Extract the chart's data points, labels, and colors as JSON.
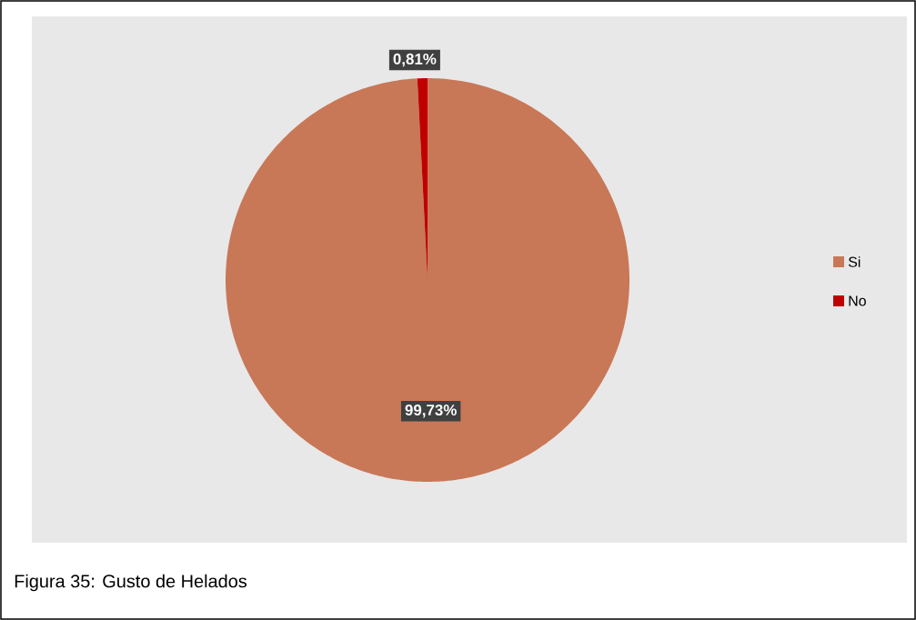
{
  "chart_data": {
    "type": "pie",
    "title": "Figura 35: Gusto de Helados",
    "categories": [
      "Si",
      "No"
    ],
    "values": [
      99.73,
      0.81
    ],
    "colors": [
      "#c87857",
      "#c00000"
    ],
    "value_labels": [
      "99,73%",
      "0,81%"
    ],
    "legend": "right"
  }
}
